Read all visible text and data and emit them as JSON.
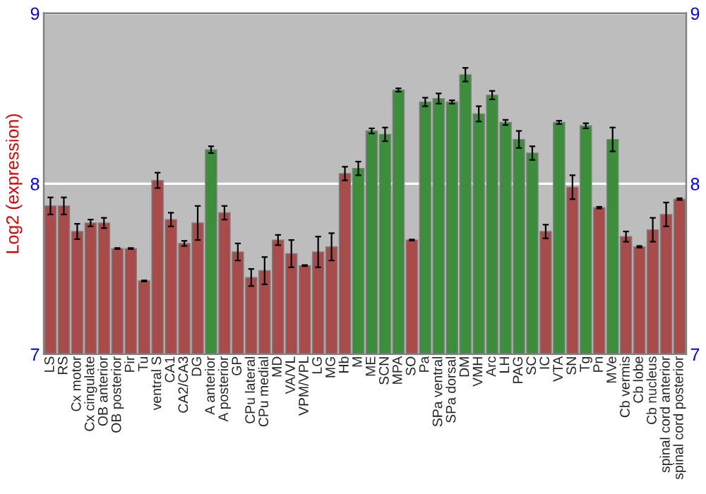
{
  "chart_data": {
    "type": "bar",
    "ylabel": "Log2 (expression)",
    "categories": [
      "LS",
      "RS",
      "Cx motor",
      "Cx cingulate",
      "OB anterior",
      "OB posterior",
      "Pir",
      "Tu",
      "ventral S",
      "CA1",
      "CA2/CA3",
      "DG",
      "A anterior",
      "A posterior",
      "GP",
      "CPu lateral",
      "CPu medial",
      "MD",
      "VA/VL",
      "VPM/VPL",
      "LG",
      "MG",
      "Hb",
      "M",
      "ME",
      "SCN",
      "MPA",
      "SO",
      "Pa",
      "SPa ventral",
      "SPa dorsal",
      "DM",
      "VMH",
      "Arc",
      "LH",
      "PAG",
      "SC",
      "IC",
      "VTA",
      "SN",
      "Tg",
      "Pn",
      "MVe",
      "Cb vermis",
      "Cb lobe",
      "Cb nucleus",
      "spinal cord anterior",
      "spinal cord posterior"
    ],
    "values": [
      7.87,
      7.87,
      7.72,
      7.77,
      7.77,
      7.62,
      7.62,
      7.43,
      8.02,
      7.79,
      7.65,
      7.77,
      8.2,
      7.83,
      7.6,
      7.45,
      7.49,
      7.67,
      7.59,
      7.52,
      7.6,
      7.63,
      8.06,
      8.09,
      8.31,
      8.29,
      8.55,
      7.67,
      8.48,
      8.5,
      8.48,
      8.64,
      8.41,
      8.52,
      8.36,
      8.26,
      8.18,
      7.72,
      8.36,
      7.98,
      8.34,
      7.86,
      8.26,
      7.69,
      7.63,
      7.73,
      7.82,
      7.91
    ],
    "errors": [
      0.05,
      0.05,
      0.045,
      0.02,
      0.03,
      0.003,
      0.003,
      0.003,
      0.045,
      0.04,
      0.015,
      0.1,
      0.02,
      0.04,
      0.05,
      0.05,
      0.08,
      0.03,
      0.08,
      0.003,
      0.09,
      0.08,
      0.04,
      0.04,
      0.015,
      0.04,
      0.01,
      0.003,
      0.025,
      0.03,
      0.01,
      0.04,
      0.045,
      0.025,
      0.015,
      0.05,
      0.04,
      0.04,
      0.01,
      0.07,
      0.015,
      0.005,
      0.07,
      0.03,
      0.005,
      0.07,
      0.07,
      0.005
    ],
    "colors": [
      "#b83c3c",
      "#b83c3c",
      "#b83c3c",
      "#b83c3c",
      "#b83c3c",
      "#b83c3c",
      "#b83c3c",
      "#b83c3c",
      "#b83c3c",
      "#b83c3c",
      "#b83c3c",
      "#b83c3c",
      "#2f9a2f",
      "#b83c3c",
      "#b83c3c",
      "#b83c3c",
      "#b83c3c",
      "#b83c3c",
      "#b83c3c",
      "#b83c3c",
      "#b83c3c",
      "#b83c3c",
      "#b83c3c",
      "#2f9a2f",
      "#2f9a2f",
      "#2f9a2f",
      "#2f9a2f",
      "#b83c3c",
      "#2f9a2f",
      "#2f9a2f",
      "#2f9a2f",
      "#2f9a2f",
      "#2f9a2f",
      "#2f9a2f",
      "#2f9a2f",
      "#2f9a2f",
      "#2f9a2f",
      "#b83c3c",
      "#2f9a2f",
      "#b83c3c",
      "#2f9a2f",
      "#b83c3c",
      "#2f9a2f",
      "#b83c3c",
      "#b83c3c",
      "#b83c3c",
      "#b83c3c",
      "#b83c3c"
    ],
    "ylim": [
      7,
      9
    ],
    "yticks": [
      7,
      8,
      9
    ],
    "y2lim": [
      7,
      9
    ],
    "y2ticks": [
      7,
      8,
      9
    ],
    "grid": "y",
    "legend": false
  }
}
